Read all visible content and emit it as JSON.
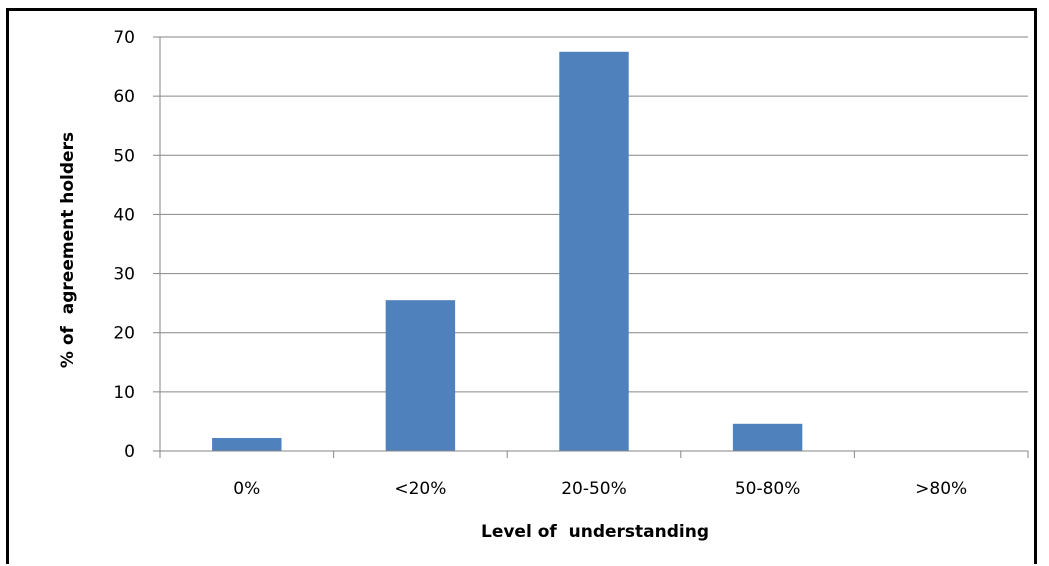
{
  "chart_data": {
    "type": "bar",
    "title": "",
    "xlabel": "Level of  understanding",
    "ylabel": "% of  agreement holders",
    "categories": [
      "0%",
      "<20%",
      "20-50%",
      "50-80%",
      ">80%"
    ],
    "values": [
      2.2,
      25.5,
      67.5,
      4.6,
      0
    ],
    "ylim": [
      0,
      70
    ],
    "yticks": [
      0,
      10,
      20,
      30,
      40,
      50,
      60,
      70
    ],
    "grid": true,
    "legend": "none",
    "bar_color": "#4F81BD"
  }
}
